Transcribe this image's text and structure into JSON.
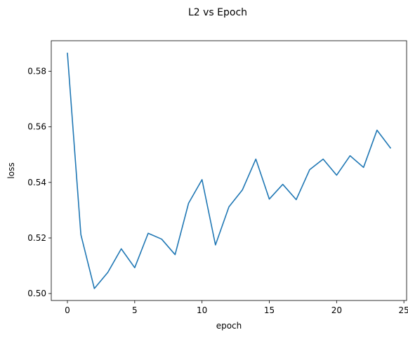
{
  "chart_data": {
    "type": "line",
    "title": "L2 vs Epoch",
    "xlabel": "epoch",
    "ylabel": "loss",
    "xlim": [
      -1.2,
      25.2
    ],
    "ylim": [
      0.4975,
      0.591
    ],
    "xticks": [
      0,
      5,
      10,
      15,
      20,
      25
    ],
    "yticks": [
      0.5,
      0.52,
      0.54,
      0.56,
      0.58
    ],
    "ytick_labels": [
      "0.50",
      "0.52",
      "0.54",
      "0.56",
      "0.58"
    ],
    "grid": false,
    "legend": "none",
    "series": [
      {
        "color": "#1f77b4",
        "x": [
          0,
          1,
          2,
          3,
          4,
          5,
          6,
          7,
          8,
          9,
          10,
          11,
          12,
          13,
          14,
          15,
          16,
          17,
          18,
          19,
          20,
          21,
          22,
          23,
          24
        ],
        "y": [
          0.5865,
          0.5212,
          0.5018,
          0.5076,
          0.5161,
          0.5093,
          0.5217,
          0.5196,
          0.514,
          0.5325,
          0.541,
          0.5175,
          0.5312,
          0.5373,
          0.5484,
          0.534,
          0.5393,
          0.5338,
          0.5446,
          0.5484,
          0.5426,
          0.5496,
          0.5454,
          0.5588,
          0.5524
        ]
      }
    ]
  }
}
